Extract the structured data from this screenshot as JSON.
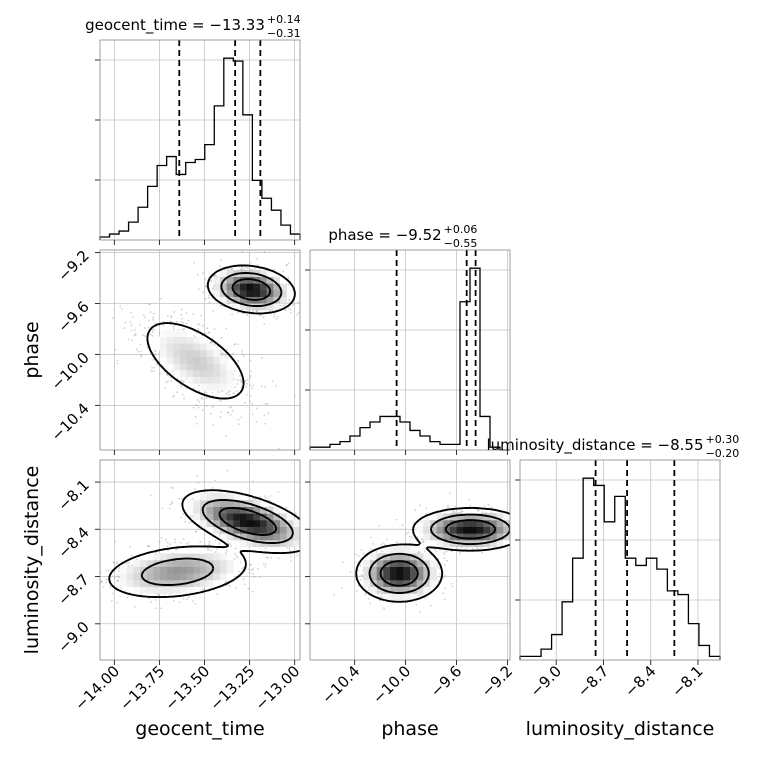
{
  "chart_data": {
    "type": "corner",
    "parameters": [
      {
        "name": "geocent_time",
        "xlabel": "geocent_time",
        "ylabel": "",
        "range": [
          -14.08,
          -12.97
        ],
        "ticks": [
          -14.0,
          -13.75,
          -13.5,
          -13.25,
          -13.0
        ],
        "tick_labels": [
          "−14.00",
          "−13.75",
          "−13.50",
          "−13.25",
          "−13.00"
        ],
        "title": {
          "main": "geocent_time = −13.33",
          "plus": "+0.14",
          "minus": "−0.31"
        },
        "quantiles": [
          -13.64,
          -13.33,
          -13.19
        ],
        "hist_counts": [
          1,
          2,
          3,
          6,
          11,
          18,
          25,
          28,
          22,
          26,
          27,
          32,
          45,
          61,
          60,
          42,
          20,
          14,
          10,
          5,
          2
        ]
      },
      {
        "name": "phase",
        "xlabel": "phase",
        "ylabel": "phase",
        "range": [
          -10.75,
          -9.18
        ],
        "ticks": [
          -10.4,
          -10.0,
          -9.6,
          -9.2
        ],
        "tick_labels": [
          "−10.4",
          "−10.0",
          "−9.6",
          "−9.2"
        ],
        "title": {
          "main": "phase = −9.52",
          "plus": "+0.06",
          "minus": "−0.55"
        },
        "quantiles": [
          -10.07,
          -9.52,
          -9.45
        ],
        "hist_counts": [
          1,
          1,
          2,
          3,
          5,
          8,
          10,
          12,
          12,
          10,
          7,
          5,
          3,
          2,
          2,
          53,
          65,
          12,
          1,
          0
        ]
      },
      {
        "name": "luminosity_distance",
        "xlabel": "luminosity_distance",
        "ylabel": "luminosity_distance",
        "range": [
          -9.23,
          -7.96
        ],
        "ticks": [
          -9.0,
          -8.7,
          -8.4,
          -8.1
        ],
        "tick_labels": [
          "−9.0",
          "−8.7",
          "−8.4",
          "−8.1"
        ],
        "title": {
          "main": "luminosity_distance = −8.55",
          "plus": "+0.30",
          "minus": "−0.20"
        },
        "quantiles": [
          -8.75,
          -8.55,
          -8.25
        ],
        "hist_counts": [
          1,
          1,
          3,
          7,
          16,
          28,
          50,
          48,
          38,
          45,
          28,
          26,
          28,
          25,
          19,
          18,
          10,
          4,
          1
        ]
      }
    ],
    "pair_plots": [
      {
        "x": "geocent_time",
        "y": "phase",
        "modes": [
          {
            "center": [
              -13.55,
              -10.05
            ],
            "spread": [
              0.11,
              0.22
            ],
            "angle": 40,
            "weight": 0.45
          },
          {
            "center": [
              -13.24,
              -9.49
            ],
            "spread": [
              0.11,
              0.08
            ],
            "angle": -18,
            "weight": 0.55
          }
        ]
      },
      {
        "x": "geocent_time",
        "y": "luminosity_distance",
        "modes": [
          {
            "center": [
              -13.65,
              -8.67
            ],
            "spread": [
              0.2,
              0.08
            ],
            "angle": 8,
            "weight": 0.4
          },
          {
            "center": [
              -13.26,
              -8.35
            ],
            "spread": [
              0.07,
              0.17
            ],
            "angle": 70,
            "weight": 0.6
          }
        ]
      },
      {
        "x": "phase",
        "y": "luminosity_distance",
        "modes": [
          {
            "center": [
              -10.05,
              -8.68
            ],
            "spread": [
              0.15,
              0.08
            ],
            "angle": 0,
            "weight": 0.5
          },
          {
            "center": [
              -9.49,
              -8.4
            ],
            "spread": [
              0.06,
              0.2
            ],
            "angle": 90,
            "weight": 0.5
          }
        ]
      }
    ],
    "contour_levels": 3,
    "grid": true,
    "colors": {
      "line": "#000000",
      "points": "#9a9a9a",
      "grid": "#c4c4c4"
    }
  }
}
